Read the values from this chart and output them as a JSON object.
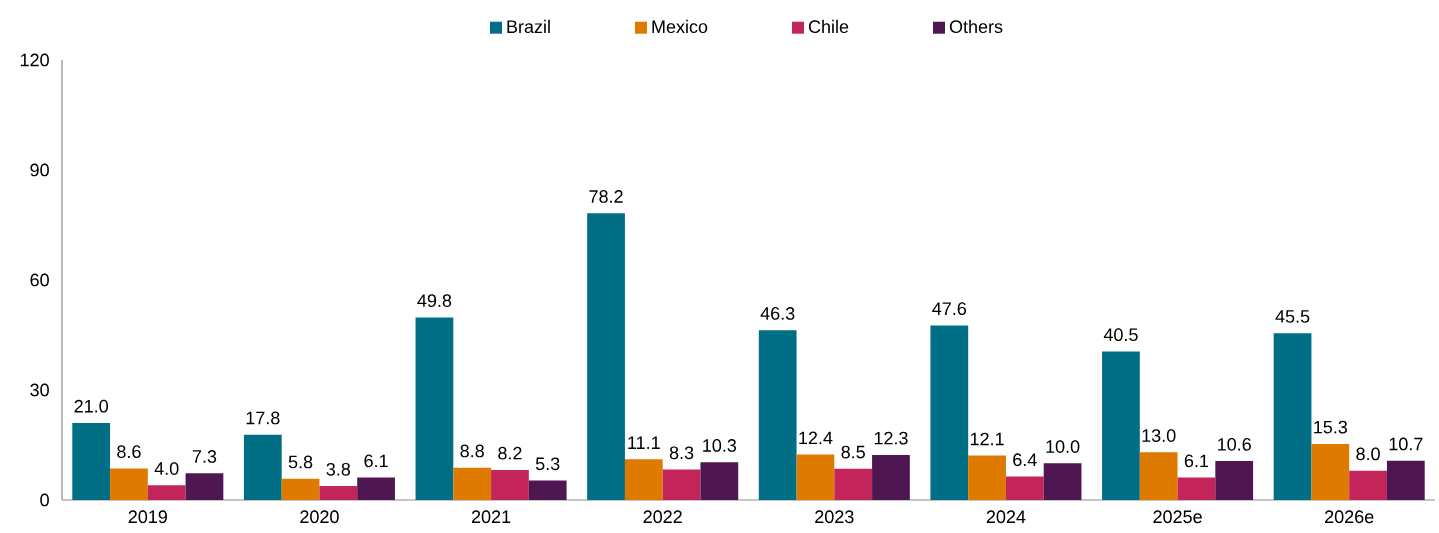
{
  "chart_data": {
    "type": "bar",
    "categories": [
      "2019",
      "2020",
      "2021",
      "2022",
      "2023",
      "2024",
      "2025e",
      "2026e"
    ],
    "series": [
      {
        "name": "Brazil",
        "color": "#006e85",
        "values": [
          21.0,
          17.8,
          49.8,
          78.2,
          46.3,
          47.6,
          40.5,
          45.5
        ],
        "value_labels": [
          "21.0",
          "17.8",
          "49.8",
          "78.2",
          "46.3",
          "47.6",
          "40.5",
          "45.5"
        ]
      },
      {
        "name": "Mexico",
        "color": "#df7a00",
        "values": [
          8.6,
          5.8,
          8.8,
          11.1,
          12.4,
          12.1,
          13.0,
          15.3
        ],
        "value_labels": [
          "8.6",
          "5.8",
          "8.8",
          "11.1",
          "12.4",
          "12.1",
          "13.0",
          "15.3"
        ]
      },
      {
        "name": "Chile",
        "color": "#c3255b",
        "values": [
          4.0,
          3.8,
          8.2,
          8.3,
          8.5,
          6.4,
          6.1,
          8.0
        ],
        "value_labels": [
          "4.0",
          "3.8",
          "8.2",
          "8.3",
          "8.5",
          "6.4",
          "6.1",
          "8.0"
        ]
      },
      {
        "name": "Others",
        "color": "#4f1752",
        "values": [
          7.3,
          6.1,
          5.3,
          10.3,
          12.3,
          10.0,
          10.6,
          10.7
        ],
        "value_labels": [
          "7.3",
          "6.1",
          "5.3",
          "10.3",
          "12.3",
          "10.0",
          "10.6",
          "10.7"
        ]
      }
    ],
    "ylim": [
      0,
      120
    ],
    "yticks": [
      0,
      30,
      60,
      90,
      120
    ],
    "legend": "top",
    "grid": false
  }
}
